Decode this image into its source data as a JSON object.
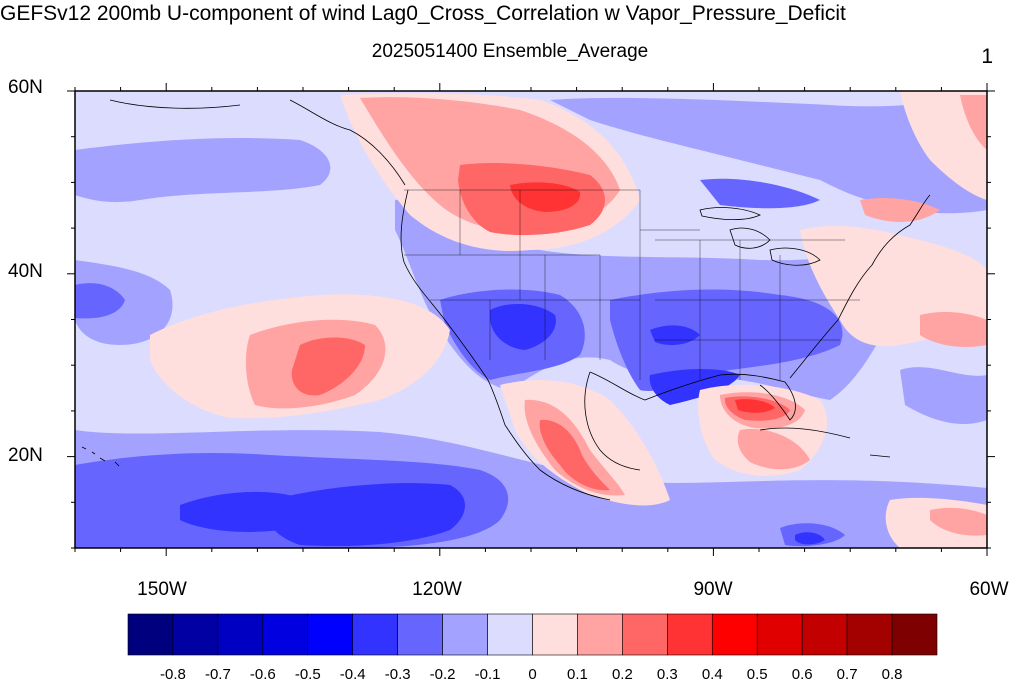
{
  "title": "GEFSv12 200mb U-component of wind Lag0_Cross_Correlation w Vapor_Pressure_Deficit",
  "subtitle": "2025051400 Ensemble_Average",
  "panel_number": "1",
  "lat_labels": [
    "60N",
    "40N",
    "20N"
  ],
  "lon_labels": [
    "150W",
    "120W",
    "90W",
    "60W"
  ],
  "colorbar": {
    "colors": [
      "#00007f",
      "#0000a3",
      "#0000c2",
      "#0000e0",
      "#0000ff",
      "#3333ff",
      "#6666ff",
      "#a3a3ff",
      "#dcdcff",
      "#ffdede",
      "#ffa3a3",
      "#ff6666",
      "#ff3333",
      "#ff0000",
      "#e00000",
      "#c20000",
      "#a30000",
      "#7f0000"
    ],
    "labels": [
      "-0.8",
      "-0.7",
      "-0.6",
      "-0.5",
      "-0.4",
      "-0.3",
      "-0.2",
      "-0.1",
      "0",
      "0.1",
      "0.2",
      "0.3",
      "0.4",
      "0.5",
      "0.6",
      "0.7",
      "0.8"
    ]
  },
  "map_data": {
    "projection": "cylindrical equidistant",
    "lon_range": [
      -160,
      -60
    ],
    "lat_range": [
      10,
      60
    ],
    "fill_levels": [
      -0.3,
      -0.2,
      -0.1,
      0,
      0.1,
      0.2,
      0.3,
      0.4
    ],
    "background_value": 0.05
  }
}
